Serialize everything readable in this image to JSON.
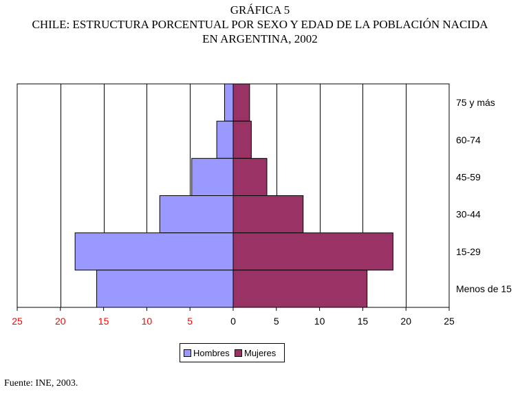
{
  "title": {
    "line1": "GRÁFICA 5",
    "line2": "CHILE: ESTRUCTURA PORCENTUAL POR SEXO Y EDAD DE LA POBLACIÓN NACIDA",
    "line3": "EN ARGENTINA, 2002"
  },
  "source": "Fuente: INE, 2003.",
  "colors": {
    "hombres": "#9999ff",
    "mujeres": "#993366",
    "left_ticks": "#ff0000",
    "right_ticks": "#000000"
  },
  "legend": {
    "hombres": "Hombres",
    "mujeres": "Mujeres"
  },
  "chart_data": {
    "type": "bar",
    "orientation": "horizontal-population-pyramid",
    "categories": [
      "75 y más",
      "60-74",
      "45-59",
      "30-44",
      "15-29",
      "Menos de 15"
    ],
    "series": [
      {
        "name": "Hombres",
        "side": "left",
        "values": [
          1.0,
          1.9,
          4.8,
          8.5,
          18.3,
          15.8
        ]
      },
      {
        "name": "Mujeres",
        "side": "right",
        "values": [
          1.9,
          2.1,
          3.9,
          8.1,
          18.5,
          15.5
        ]
      }
    ],
    "x_ticks_left": [
      "25",
      "20",
      "15",
      "10",
      "5"
    ],
    "x_ticks_right": [
      "0",
      "5",
      "10",
      "15",
      "20",
      "25"
    ],
    "xlim": [
      -25,
      25
    ],
    "grid": true,
    "legend_position": "bottom"
  }
}
